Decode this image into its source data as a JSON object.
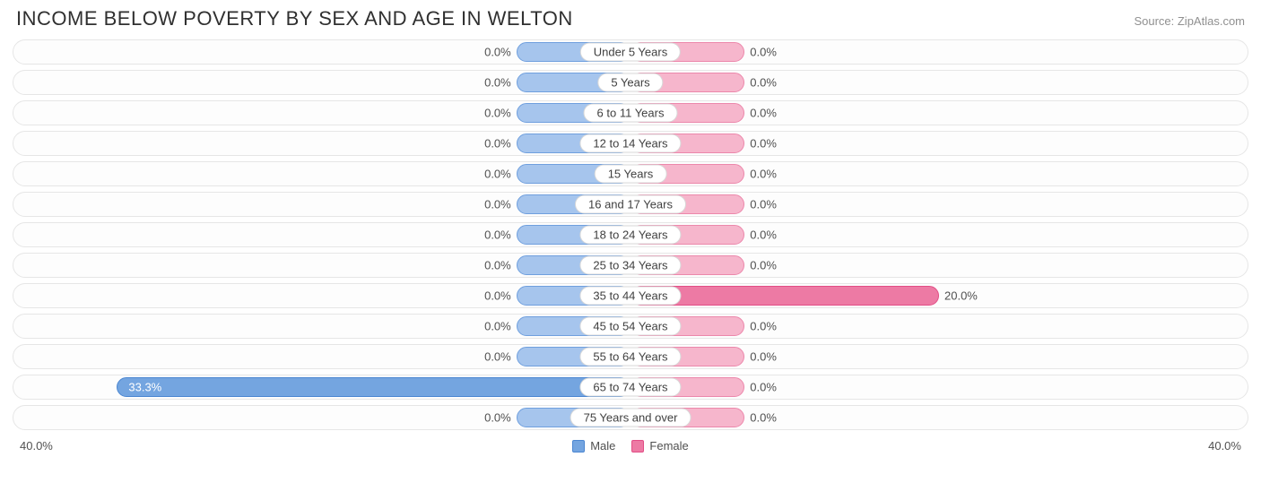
{
  "title": "INCOME BELOW POVERTY BY SEX AND AGE IN WELTON",
  "source": "Source: ZipAtlas.com",
  "axis_max": 40.0,
  "axis_left_label": "40.0%",
  "axis_right_label": "40.0%",
  "colors": {
    "male_fill": "#a6c5ed",
    "male_border": "#6f9fde",
    "male_strong_fill": "#74a5e0",
    "male_strong_border": "#4b86d1",
    "female_fill": "#f6b6cc",
    "female_border": "#ec87ab",
    "female_strong_fill": "#ed7aa4",
    "female_strong_border": "#e24e86",
    "track_border": "#e6e6e6",
    "track_bg": "#fdfdfd",
    "title_color": "#303030",
    "source_color": "#909090",
    "text_color": "#505050"
  },
  "min_bar_pct_of_half": 18.5,
  "legend": {
    "male": "Male",
    "female": "Female"
  },
  "rows": [
    {
      "label": "Under 5 Years",
      "male": 0.0,
      "female": 0.0
    },
    {
      "label": "5 Years",
      "male": 0.0,
      "female": 0.0
    },
    {
      "label": "6 to 11 Years",
      "male": 0.0,
      "female": 0.0
    },
    {
      "label": "12 to 14 Years",
      "male": 0.0,
      "female": 0.0
    },
    {
      "label": "15 Years",
      "male": 0.0,
      "female": 0.0
    },
    {
      "label": "16 and 17 Years",
      "male": 0.0,
      "female": 0.0
    },
    {
      "label": "18 to 24 Years",
      "male": 0.0,
      "female": 0.0
    },
    {
      "label": "25 to 34 Years",
      "male": 0.0,
      "female": 0.0
    },
    {
      "label": "35 to 44 Years",
      "male": 0.0,
      "female": 20.0
    },
    {
      "label": "45 to 54 Years",
      "male": 0.0,
      "female": 0.0
    },
    {
      "label": "55 to 64 Years",
      "male": 0.0,
      "female": 0.0
    },
    {
      "label": "65 to 74 Years",
      "male": 33.3,
      "female": 0.0
    },
    {
      "label": "75 Years and over",
      "male": 0.0,
      "female": 0.0
    }
  ]
}
